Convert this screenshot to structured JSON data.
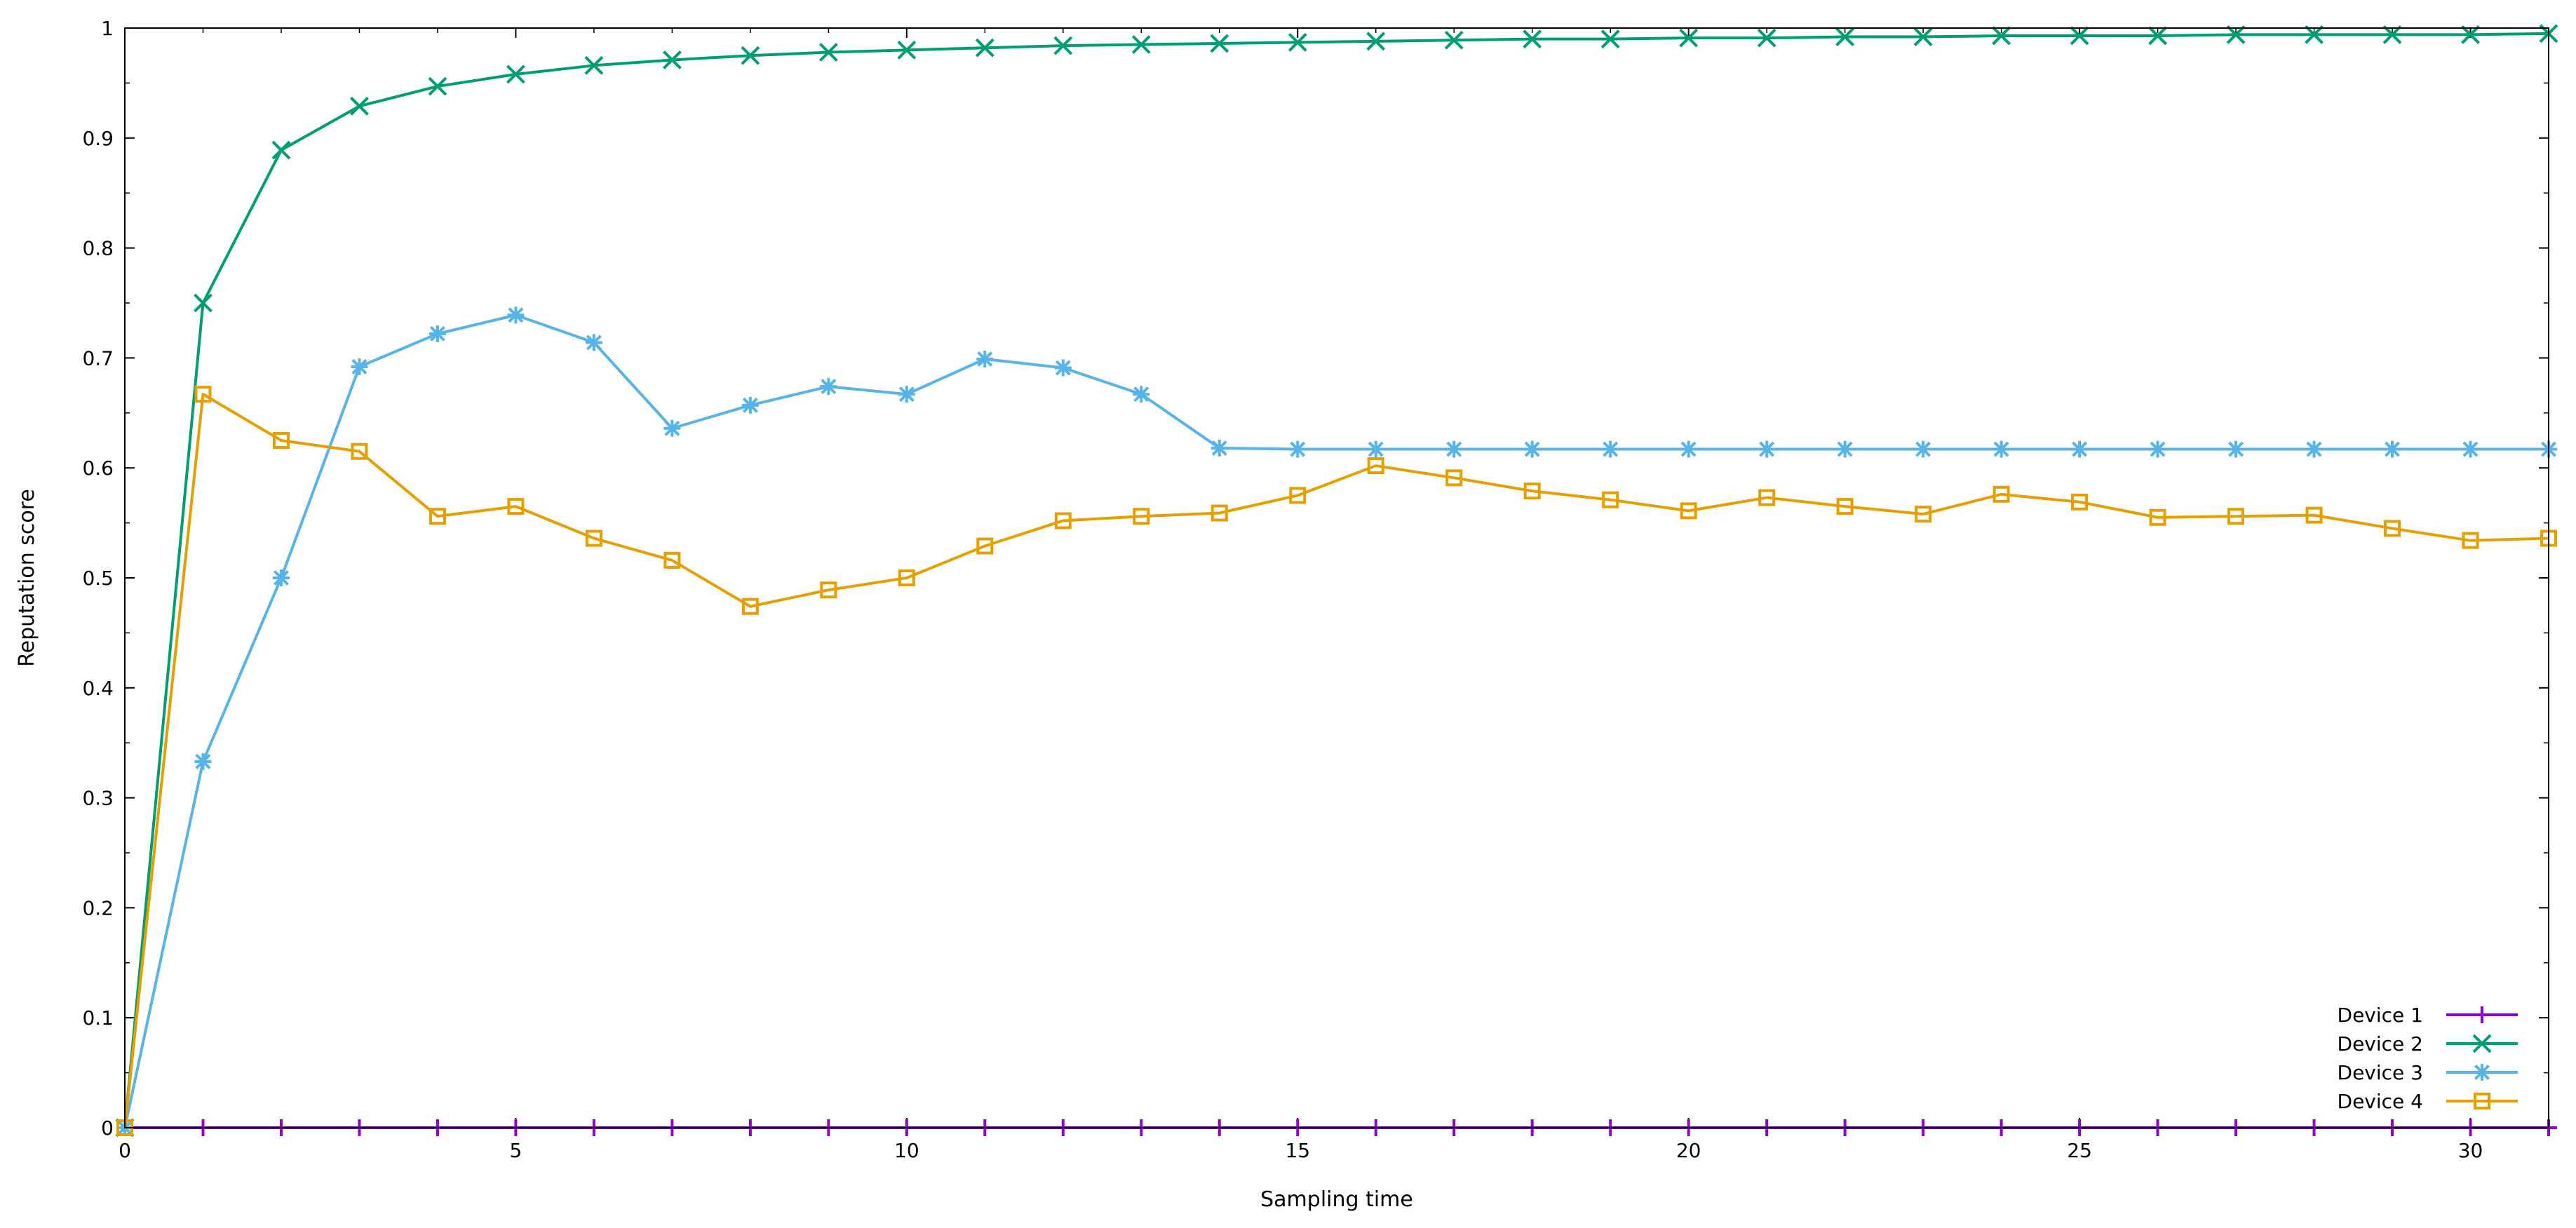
{
  "chart_data": {
    "type": "line",
    "title": "",
    "xlabel": "Sampling time",
    "ylabel": "Reputation score",
    "xlim": [
      0,
      31
    ],
    "ylim": [
      0,
      1
    ],
    "x_ticks": [
      0,
      5,
      10,
      15,
      20,
      25,
      30
    ],
    "y_ticks": [
      0,
      0.1,
      0.2,
      0.3,
      0.4,
      0.5,
      0.6,
      0.7,
      0.8,
      0.9,
      1
    ],
    "x_tick_labels": [
      "0",
      "5",
      "10",
      "15",
      "20",
      "25",
      "30"
    ],
    "y_tick_labels": [
      "0",
      "0.1",
      "0.2",
      "0.3",
      "0.4",
      "0.5",
      "0.6",
      "0.7",
      "0.8",
      "0.9",
      "1"
    ],
    "grid": false,
    "legend_position": "bottom-right",
    "x": [
      0,
      1,
      2,
      3,
      4,
      5,
      6,
      7,
      8,
      9,
      10,
      11,
      12,
      13,
      14,
      15,
      16,
      17,
      18,
      19,
      20,
      21,
      22,
      23,
      24,
      25,
      26,
      27,
      28,
      29,
      30,
      31
    ],
    "series": [
      {
        "name": "Device 1",
        "color": "#9400d3",
        "marker": "plus",
        "values": [
          0,
          0,
          0,
          0,
          0,
          0,
          0,
          0,
          0,
          0,
          0,
          0,
          0,
          0,
          0,
          0,
          0,
          0,
          0,
          0,
          0,
          0,
          0,
          0,
          0,
          0,
          0,
          0,
          0,
          0,
          0,
          0
        ]
      },
      {
        "name": "Device 2",
        "color": "#009e73",
        "marker": "cross",
        "values": [
          0,
          0.75,
          0.889,
          0.929,
          0.947,
          0.958,
          0.966,
          0.971,
          0.975,
          0.978,
          0.98,
          0.982,
          0.984,
          0.985,
          0.986,
          0.987,
          0.988,
          0.989,
          0.99,
          0.99,
          0.991,
          0.991,
          0.992,
          0.992,
          0.993,
          0.993,
          0.993,
          0.994,
          0.994,
          0.994,
          0.994,
          0.995
        ]
      },
      {
        "name": "Device 3",
        "color": "#56b4e9",
        "marker": "star",
        "values": [
          0,
          0.333,
          0.5,
          0.692,
          0.722,
          0.739,
          0.714,
          0.636,
          0.657,
          0.674,
          0.667,
          0.699,
          0.691,
          0.667,
          0.618,
          0.617,
          0.617,
          0.617,
          0.617,
          0.617,
          0.617,
          0.617,
          0.617,
          0.617,
          0.617,
          0.617,
          0.617,
          0.617,
          0.617,
          0.617,
          0.617,
          0.617
        ]
      },
      {
        "name": "Device 4",
        "color": "#e69f00",
        "marker": "square",
        "values": [
          0,
          0.667,
          0.625,
          0.615,
          0.556,
          0.565,
          0.536,
          0.516,
          0.474,
          0.489,
          0.5,
          0.529,
          0.552,
          0.556,
          0.559,
          0.575,
          0.602,
          0.591,
          0.579,
          0.571,
          0.561,
          0.573,
          0.565,
          0.558,
          0.576,
          0.569,
          0.555,
          0.556,
          0.557,
          0.545,
          0.534,
          0.536
        ]
      }
    ]
  }
}
